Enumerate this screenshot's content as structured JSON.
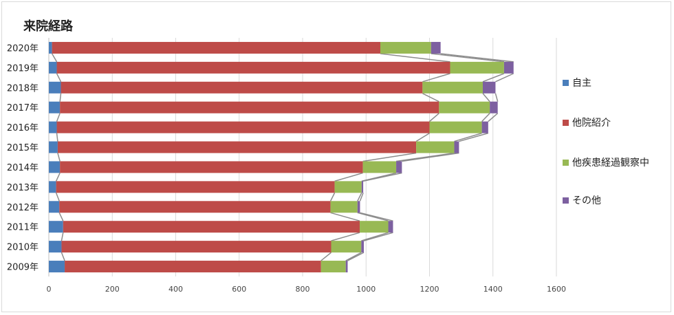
{
  "chart_data": {
    "type": "bar",
    "orientation": "horizontal",
    "stacked": true,
    "title": "来院経路",
    "xlabel": "",
    "ylabel": "",
    "xlim": [
      0,
      1600
    ],
    "xticks": [
      0,
      200,
      400,
      600,
      800,
      1000,
      1200,
      1400,
      1600
    ],
    "grid": true,
    "legend_position": "right",
    "categories": [
      "2020年",
      "2019年",
      "2018年",
      "2017年",
      "2016年",
      "2015年",
      "2014年",
      "2013年",
      "2012年",
      "2011年",
      "2010年",
      "2009年"
    ],
    "series": [
      {
        "name": "自主",
        "color": "#4a7ebb",
        "values": [
          10,
          25,
          38,
          35,
          25,
          28,
          35,
          23,
          33,
          45,
          40,
          50
        ]
      },
      {
        "name": "他院紹介",
        "color": "#be4b48",
        "values": [
          1035,
          1240,
          1140,
          1195,
          1175,
          1130,
          955,
          878,
          855,
          935,
          850,
          808
        ]
      },
      {
        "name": "他疾患経過観察中",
        "color": "#98b954",
        "values": [
          160,
          170,
          190,
          160,
          165,
          120,
          105,
          85,
          85,
          90,
          95,
          78
        ]
      },
      {
        "name": "その他",
        "color": "#7d60a0",
        "values": [
          30,
          30,
          40,
          25,
          20,
          15,
          18,
          5,
          8,
          15,
          8,
          6
        ]
      }
    ]
  }
}
